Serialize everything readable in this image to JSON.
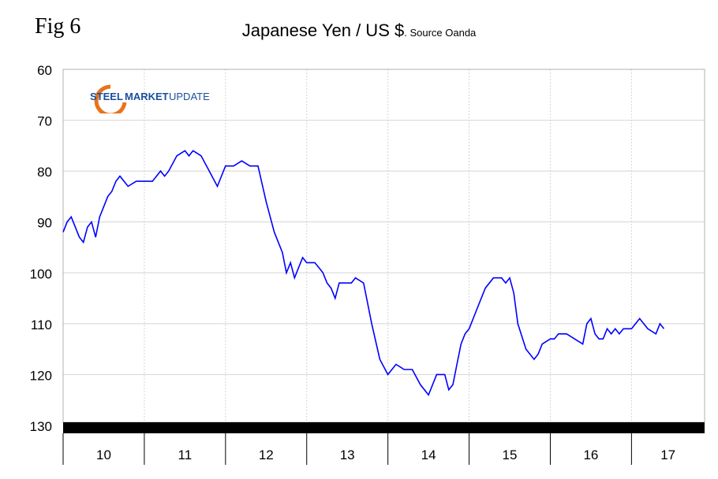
{
  "fig_label": "Fig 6",
  "title": "Japanese Yen / US $",
  "source": ". Source Oanda",
  "logo": {
    "word1": "STEEL",
    "word2": "MARKET",
    "word3": " UPDATE"
  },
  "colors": {
    "line": "#0000ff",
    "grid": "#d4d4d4",
    "axis_band": "#000000",
    "logo_blue": "#1b4f9c",
    "logo_orange": "#e8731a"
  },
  "chart_data": {
    "type": "line",
    "title": "Japanese Yen / US $",
    "xlabel": "",
    "ylabel": "",
    "y_inverted": true,
    "ylim": [
      60,
      130
    ],
    "y_ticks": [
      60,
      70,
      80,
      90,
      100,
      110,
      120,
      130
    ],
    "x_categories": [
      "10",
      "11",
      "12",
      "13",
      "14",
      "15",
      "16",
      "17"
    ],
    "xlim": [
      2010.0,
      2017.9
    ],
    "grid": true,
    "series": [
      {
        "x": [
          2010.0,
          2010.05,
          2010.1,
          2010.15,
          2010.2,
          2010.25,
          2010.3,
          2010.35,
          2010.4,
          2010.45,
          2010.5,
          2010.55,
          2010.6,
          2010.65,
          2010.7,
          2010.8,
          2010.9,
          2011.0,
          2011.1,
          2011.2,
          2011.25,
          2011.3,
          2011.4,
          2011.5,
          2011.55,
          2011.6,
          2011.7,
          2011.8,
          2011.9,
          2012.0,
          2012.1,
          2012.2,
          2012.3,
          2012.4,
          2012.5,
          2012.6,
          2012.7,
          2012.75,
          2012.8,
          2012.85,
          2012.9,
          2012.95,
          2013.0,
          2013.05,
          2013.1,
          2013.15,
          2013.2,
          2013.25,
          2013.3,
          2013.35,
          2013.4,
          2013.45,
          2013.5,
          2013.55,
          2013.6,
          2013.7,
          2013.8,
          2013.9,
          2014.0,
          2014.1,
          2014.2,
          2014.3,
          2014.4,
          2014.5,
          2014.6,
          2014.7,
          2014.75,
          2014.8,
          2014.85,
          2014.9,
          2014.95,
          2015.0,
          2015.1,
          2015.2,
          2015.3,
          2015.4,
          2015.45,
          2015.5,
          2015.55,
          2015.6,
          2015.7,
          2015.8,
          2015.85,
          2015.9,
          2016.0,
          2016.05,
          2016.1,
          2016.2,
          2016.3,
          2016.4,
          2016.45,
          2016.5,
          2016.55,
          2016.6,
          2016.65,
          2016.7,
          2016.75,
          2016.8,
          2016.85,
          2016.9,
          2017.0,
          2017.1,
          2017.2,
          2017.3,
          2017.35,
          2017.4
        ],
        "y": [
          92,
          90,
          89,
          91,
          93,
          94,
          91,
          90,
          93,
          89,
          87,
          85,
          84,
          82,
          81,
          83,
          82,
          82,
          82,
          80,
          81,
          80,
          77,
          76,
          77,
          76,
          77,
          80,
          83,
          79,
          79,
          78,
          79,
          79,
          86,
          92,
          96,
          100,
          98,
          101,
          99,
          97,
          98,
          98,
          98,
          99,
          100,
          102,
          103,
          105,
          102,
          102,
          102,
          102,
          101,
          102,
          110,
          117,
          120,
          118,
          119,
          119,
          122,
          124,
          120,
          120,
          123,
          122,
          118,
          114,
          112,
          111,
          107,
          103,
          101,
          101,
          102,
          101,
          104,
          110,
          115,
          117,
          116,
          114,
          113,
          113,
          112,
          112,
          113,
          114,
          110,
          109,
          112,
          113,
          113,
          111,
          112,
          111,
          112,
          111,
          111,
          109,
          111,
          112,
          110,
          111
        ]
      }
    ]
  }
}
